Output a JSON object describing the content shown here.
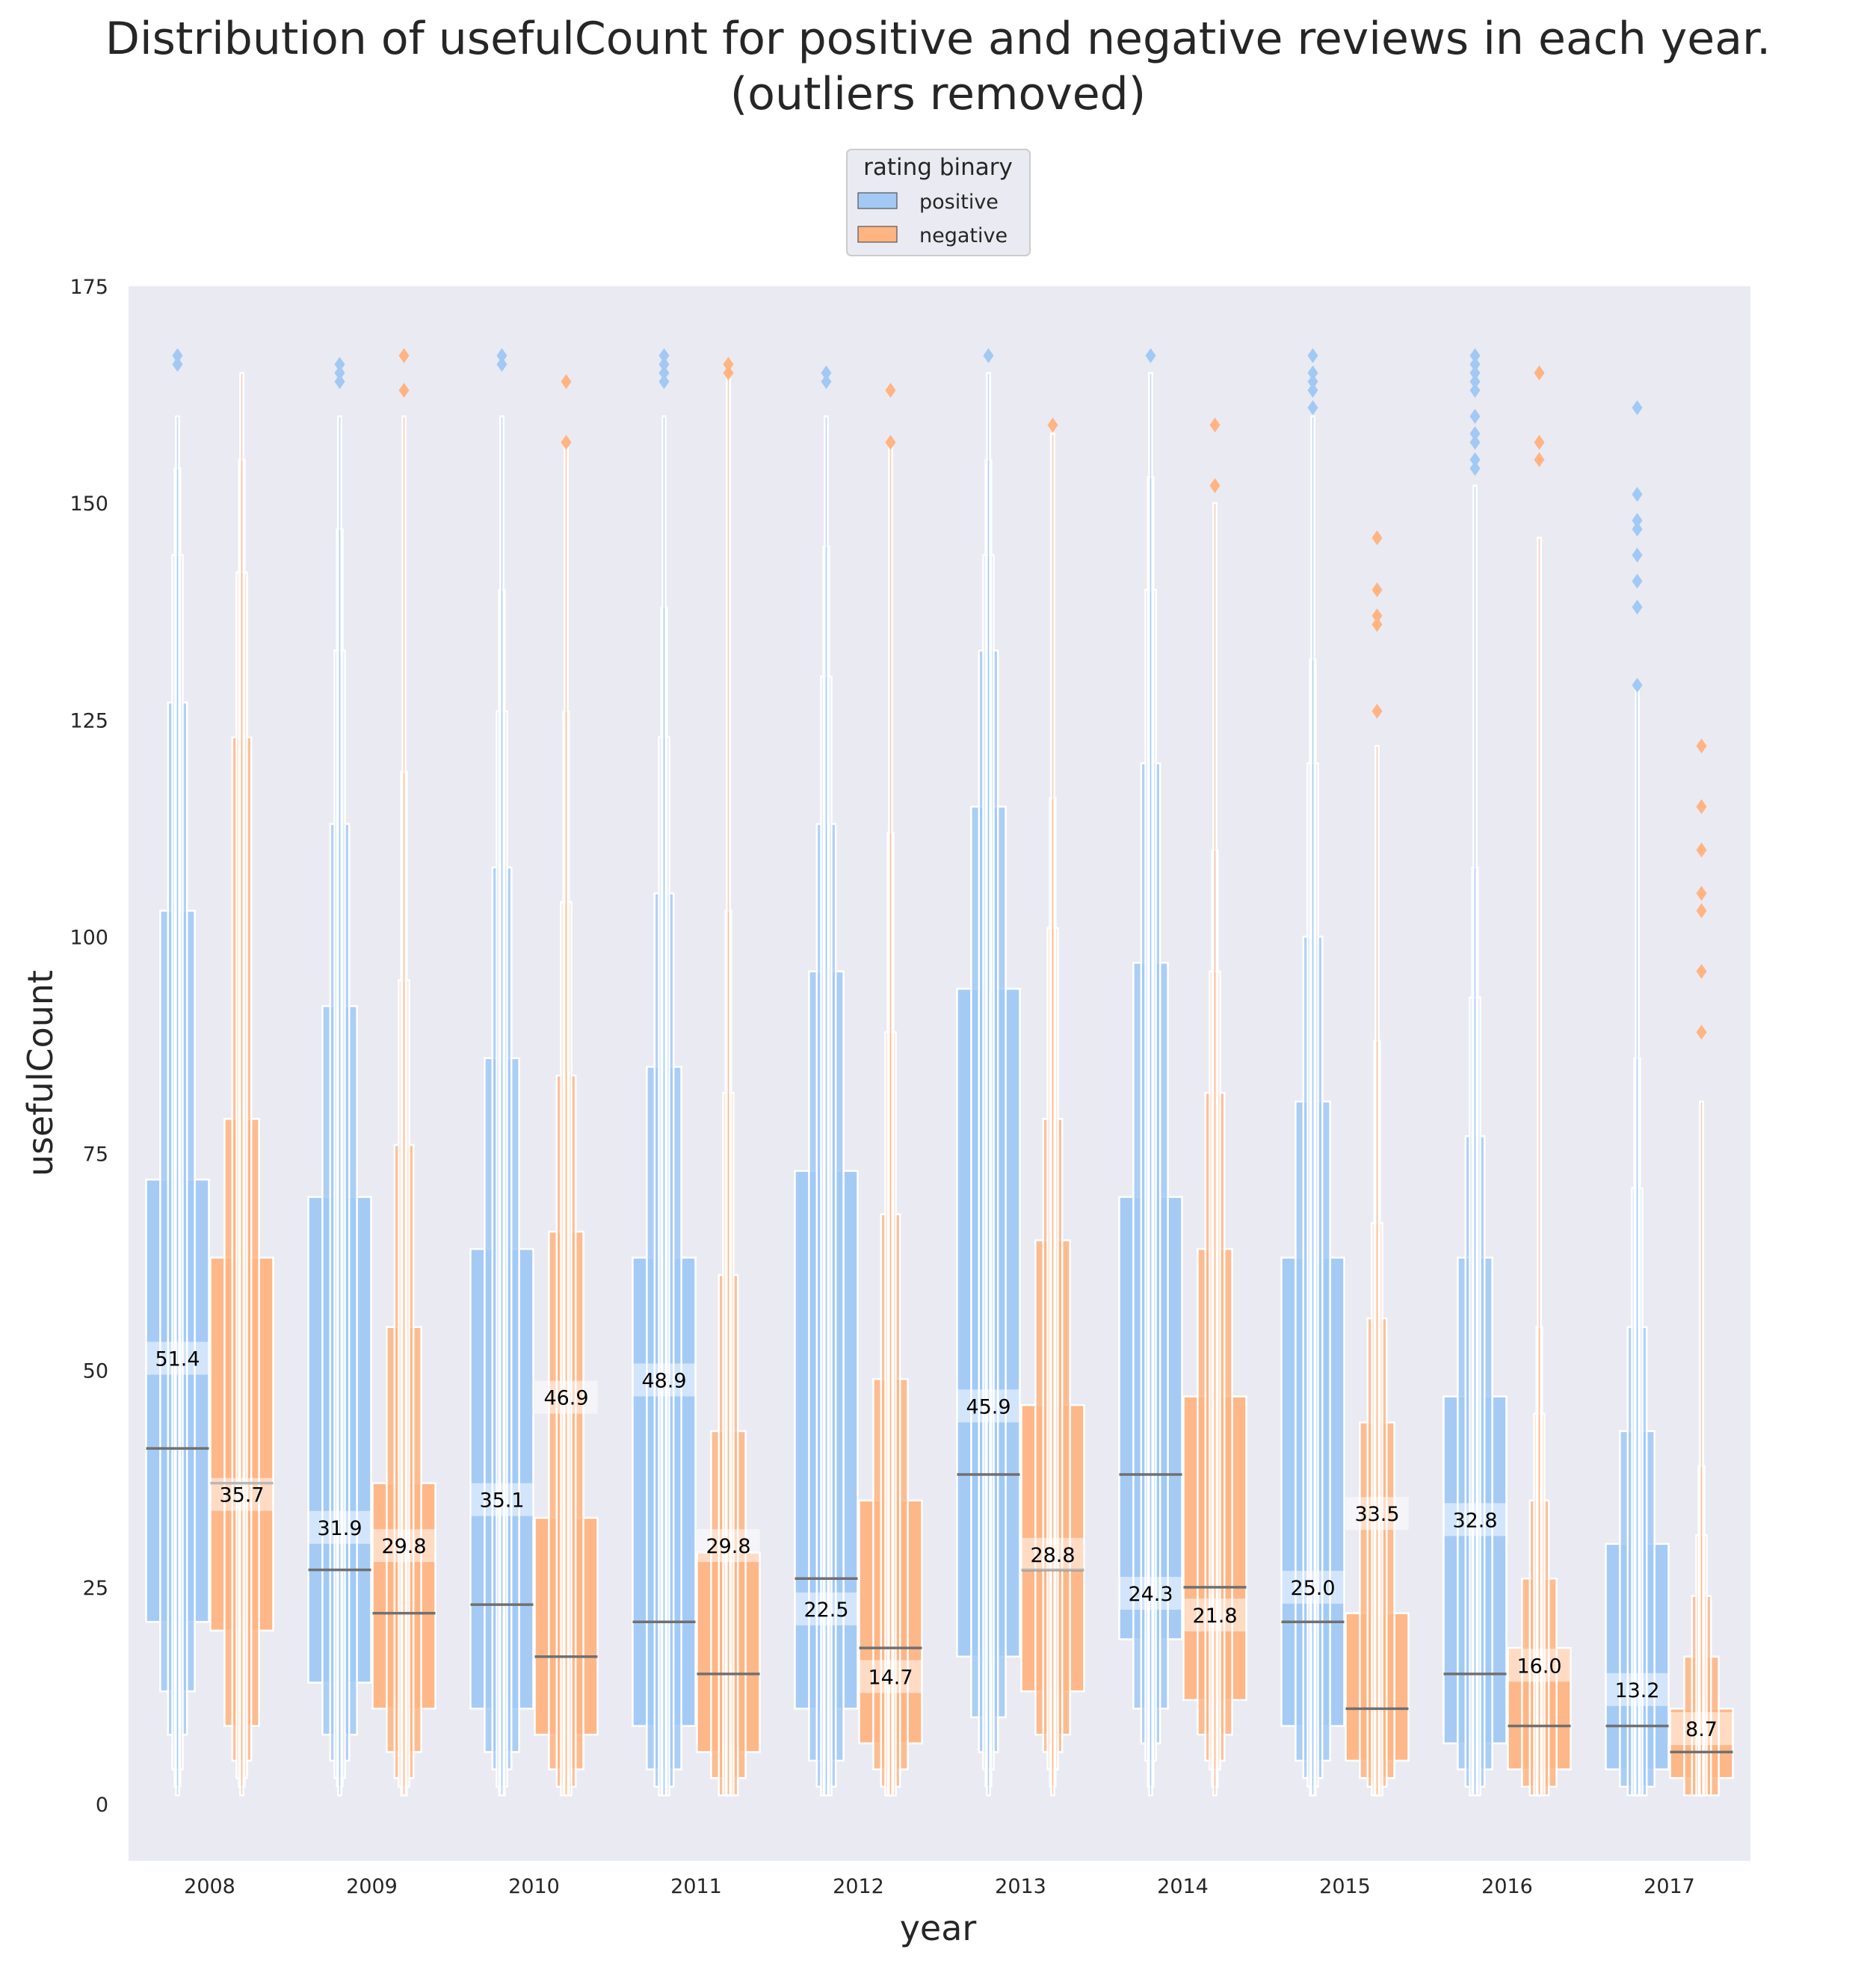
{
  "chart_data": {
    "type": "boxen",
    "title": "Distribution of usefulCount for positive and negative reviews in each year.",
    "subtitle": "(outliers removed)",
    "xlabel": "year",
    "ylabel": "usefulCount",
    "ylim": [
      -7,
      175
    ],
    "yticks": [
      0,
      25,
      50,
      75,
      100,
      125,
      150,
      175
    ],
    "categories": [
      "2008",
      "2009",
      "2010",
      "2011",
      "2012",
      "2013",
      "2014",
      "2015",
      "2016",
      "2017"
    ],
    "grid": false,
    "legend": {
      "title": "rating binary",
      "placement": "top-center",
      "entries": [
        "positive",
        "negative"
      ]
    },
    "series": [
      {
        "name": "positive",
        "color": "#a1c9f4",
        "medians": [
          41,
          27,
          23,
          21,
          26,
          38,
          38,
          21,
          15,
          9
        ],
        "mean_labels": [
          "51.4",
          "31.9",
          "35.1",
          "48.9",
          "22.5",
          "45.9",
          "24.3",
          "25.0",
          "32.8",
          "13.2"
        ],
        "means": [
          51.4,
          31.9,
          35.1,
          48.9,
          22.5,
          45.9,
          24.3,
          25.0,
          32.8,
          13.2
        ],
        "boxes": [
          [
            [
              21,
              72
            ],
            [
              13,
              103
            ],
            [
              8,
              127
            ],
            [
              4,
              144
            ],
            [
              2,
              154
            ],
            [
              1,
              160
            ]
          ],
          [
            [
              14,
              70
            ],
            [
              8,
              92
            ],
            [
              5,
              113
            ],
            [
              3,
              133
            ],
            [
              2,
              147
            ],
            [
              1,
              160
            ]
          ],
          [
            [
              11,
              64
            ],
            [
              6,
              86
            ],
            [
              4,
              108
            ],
            [
              2,
              126
            ],
            [
              1,
              140
            ],
            [
              1,
              160
            ]
          ],
          [
            [
              9,
              63
            ],
            [
              4,
              85
            ],
            [
              2,
              105
            ],
            [
              1,
              123
            ],
            [
              1,
              138
            ],
            [
              1,
              160
            ]
          ],
          [
            [
              11,
              73
            ],
            [
              5,
              96
            ],
            [
              2,
              113
            ],
            [
              1,
              130
            ],
            [
              1,
              145
            ],
            [
              1,
              160
            ]
          ],
          [
            [
              17,
              94
            ],
            [
              10,
              115
            ],
            [
              6,
              133
            ],
            [
              4,
              144
            ],
            [
              2,
              155
            ],
            [
              1,
              165
            ]
          ],
          [
            [
              19,
              70
            ],
            [
              11,
              97
            ],
            [
              7,
              120
            ],
            [
              5,
              140
            ],
            [
              2,
              153
            ],
            [
              1,
              165
            ]
          ],
          [
            [
              9,
              63
            ],
            [
              5,
              81
            ],
            [
              3,
              100
            ],
            [
              2,
              120
            ],
            [
              1,
              132
            ],
            [
              1,
              160
            ]
          ],
          [
            [
              7,
              47
            ],
            [
              4,
              63
            ],
            [
              2,
              77
            ],
            [
              1,
              93
            ],
            [
              1,
              108
            ],
            [
              1,
              152
            ]
          ],
          [
            [
              4,
              30
            ],
            [
              2,
              43
            ],
            [
              1,
              55
            ],
            [
              1,
              71
            ],
            [
              1,
              86
            ],
            [
              1,
              129
            ]
          ]
        ],
        "outliers": [
          [
            166,
            167
          ],
          [
            164,
            165,
            166
          ],
          [
            166,
            167
          ],
          [
            164,
            165,
            166,
            167
          ],
          [
            164,
            165
          ],
          [
            167
          ],
          [
            167
          ],
          [
            161,
            163,
            164,
            165,
            167
          ],
          [
            154,
            155,
            157,
            158,
            160,
            163,
            164,
            165,
            166,
            167
          ],
          [
            129,
            138,
            141,
            144,
            147,
            148,
            151,
            161
          ]
        ]
      },
      {
        "name": "negative",
        "color": "#ffb482",
        "medians": [
          37,
          22,
          17,
          15,
          18,
          27,
          25,
          11,
          9,
          6
        ],
        "mean_labels": [
          "35.7",
          "29.8",
          "46.9",
          "29.8",
          "14.7",
          "28.8",
          "21.8",
          "33.5",
          "16.0",
          "8.7"
        ],
        "means": [
          35.7,
          29.8,
          46.9,
          29.8,
          14.7,
          28.8,
          21.8,
          33.5,
          16.0,
          8.7
        ],
        "boxes": [
          [
            [
              20,
              63
            ],
            [
              9,
              79
            ],
            [
              5,
              123
            ],
            [
              3,
              142
            ],
            [
              2,
              155
            ],
            [
              1,
              165
            ]
          ],
          [
            [
              11,
              37
            ],
            [
              6,
              55
            ],
            [
              3,
              76
            ],
            [
              2,
              95
            ],
            [
              1,
              119
            ],
            [
              1,
              160
            ]
          ],
          [
            [
              8,
              33
            ],
            [
              4,
              66
            ],
            [
              2,
              84
            ],
            [
              1,
              104
            ],
            [
              1,
              126
            ],
            [
              1,
              157
            ]
          ],
          [
            [
              6,
              29
            ],
            [
              3,
              43
            ],
            [
              1,
              61
            ],
            [
              1,
              82
            ],
            [
              1,
              103
            ],
            [
              1,
              165
            ]
          ],
          [
            [
              7,
              35
            ],
            [
              4,
              49
            ],
            [
              2,
              68
            ],
            [
              1,
              89
            ],
            [
              1,
              112
            ],
            [
              1,
              157
            ]
          ],
          [
            [
              13,
              46
            ],
            [
              8,
              65
            ],
            [
              6,
              79
            ],
            [
              4,
              101
            ],
            [
              2,
              116
            ],
            [
              1,
              158
            ]
          ],
          [
            [
              12,
              47
            ],
            [
              8,
              64
            ],
            [
              5,
              82
            ],
            [
              4,
              96
            ],
            [
              2,
              110
            ],
            [
              1,
              150
            ]
          ],
          [
            [
              5,
              22
            ],
            [
              3,
              44
            ],
            [
              2,
              56
            ],
            [
              1,
              67
            ],
            [
              1,
              88
            ],
            [
              1,
              122
            ]
          ],
          [
            [
              4,
              18
            ],
            [
              2,
              26
            ],
            [
              1,
              35
            ],
            [
              1,
              45
            ],
            [
              1,
              55
            ],
            [
              1,
              146
            ]
          ],
          [
            [
              3,
              11
            ],
            [
              1,
              17
            ],
            [
              1,
              24
            ],
            [
              1,
              31
            ],
            [
              1,
              39
            ],
            [
              1,
              81
            ]
          ]
        ],
        "outliers": [
          [],
          [
            163,
            167
          ],
          [
            157,
            164
          ],
          [
            165,
            166
          ],
          [
            157,
            163
          ],
          [
            159
          ],
          [
            152,
            159
          ],
          [
            126,
            136,
            137,
            140,
            146
          ],
          [
            155,
            157,
            165
          ],
          [
            89,
            96,
            103,
            105,
            110,
            115,
            122
          ]
        ]
      }
    ]
  }
}
